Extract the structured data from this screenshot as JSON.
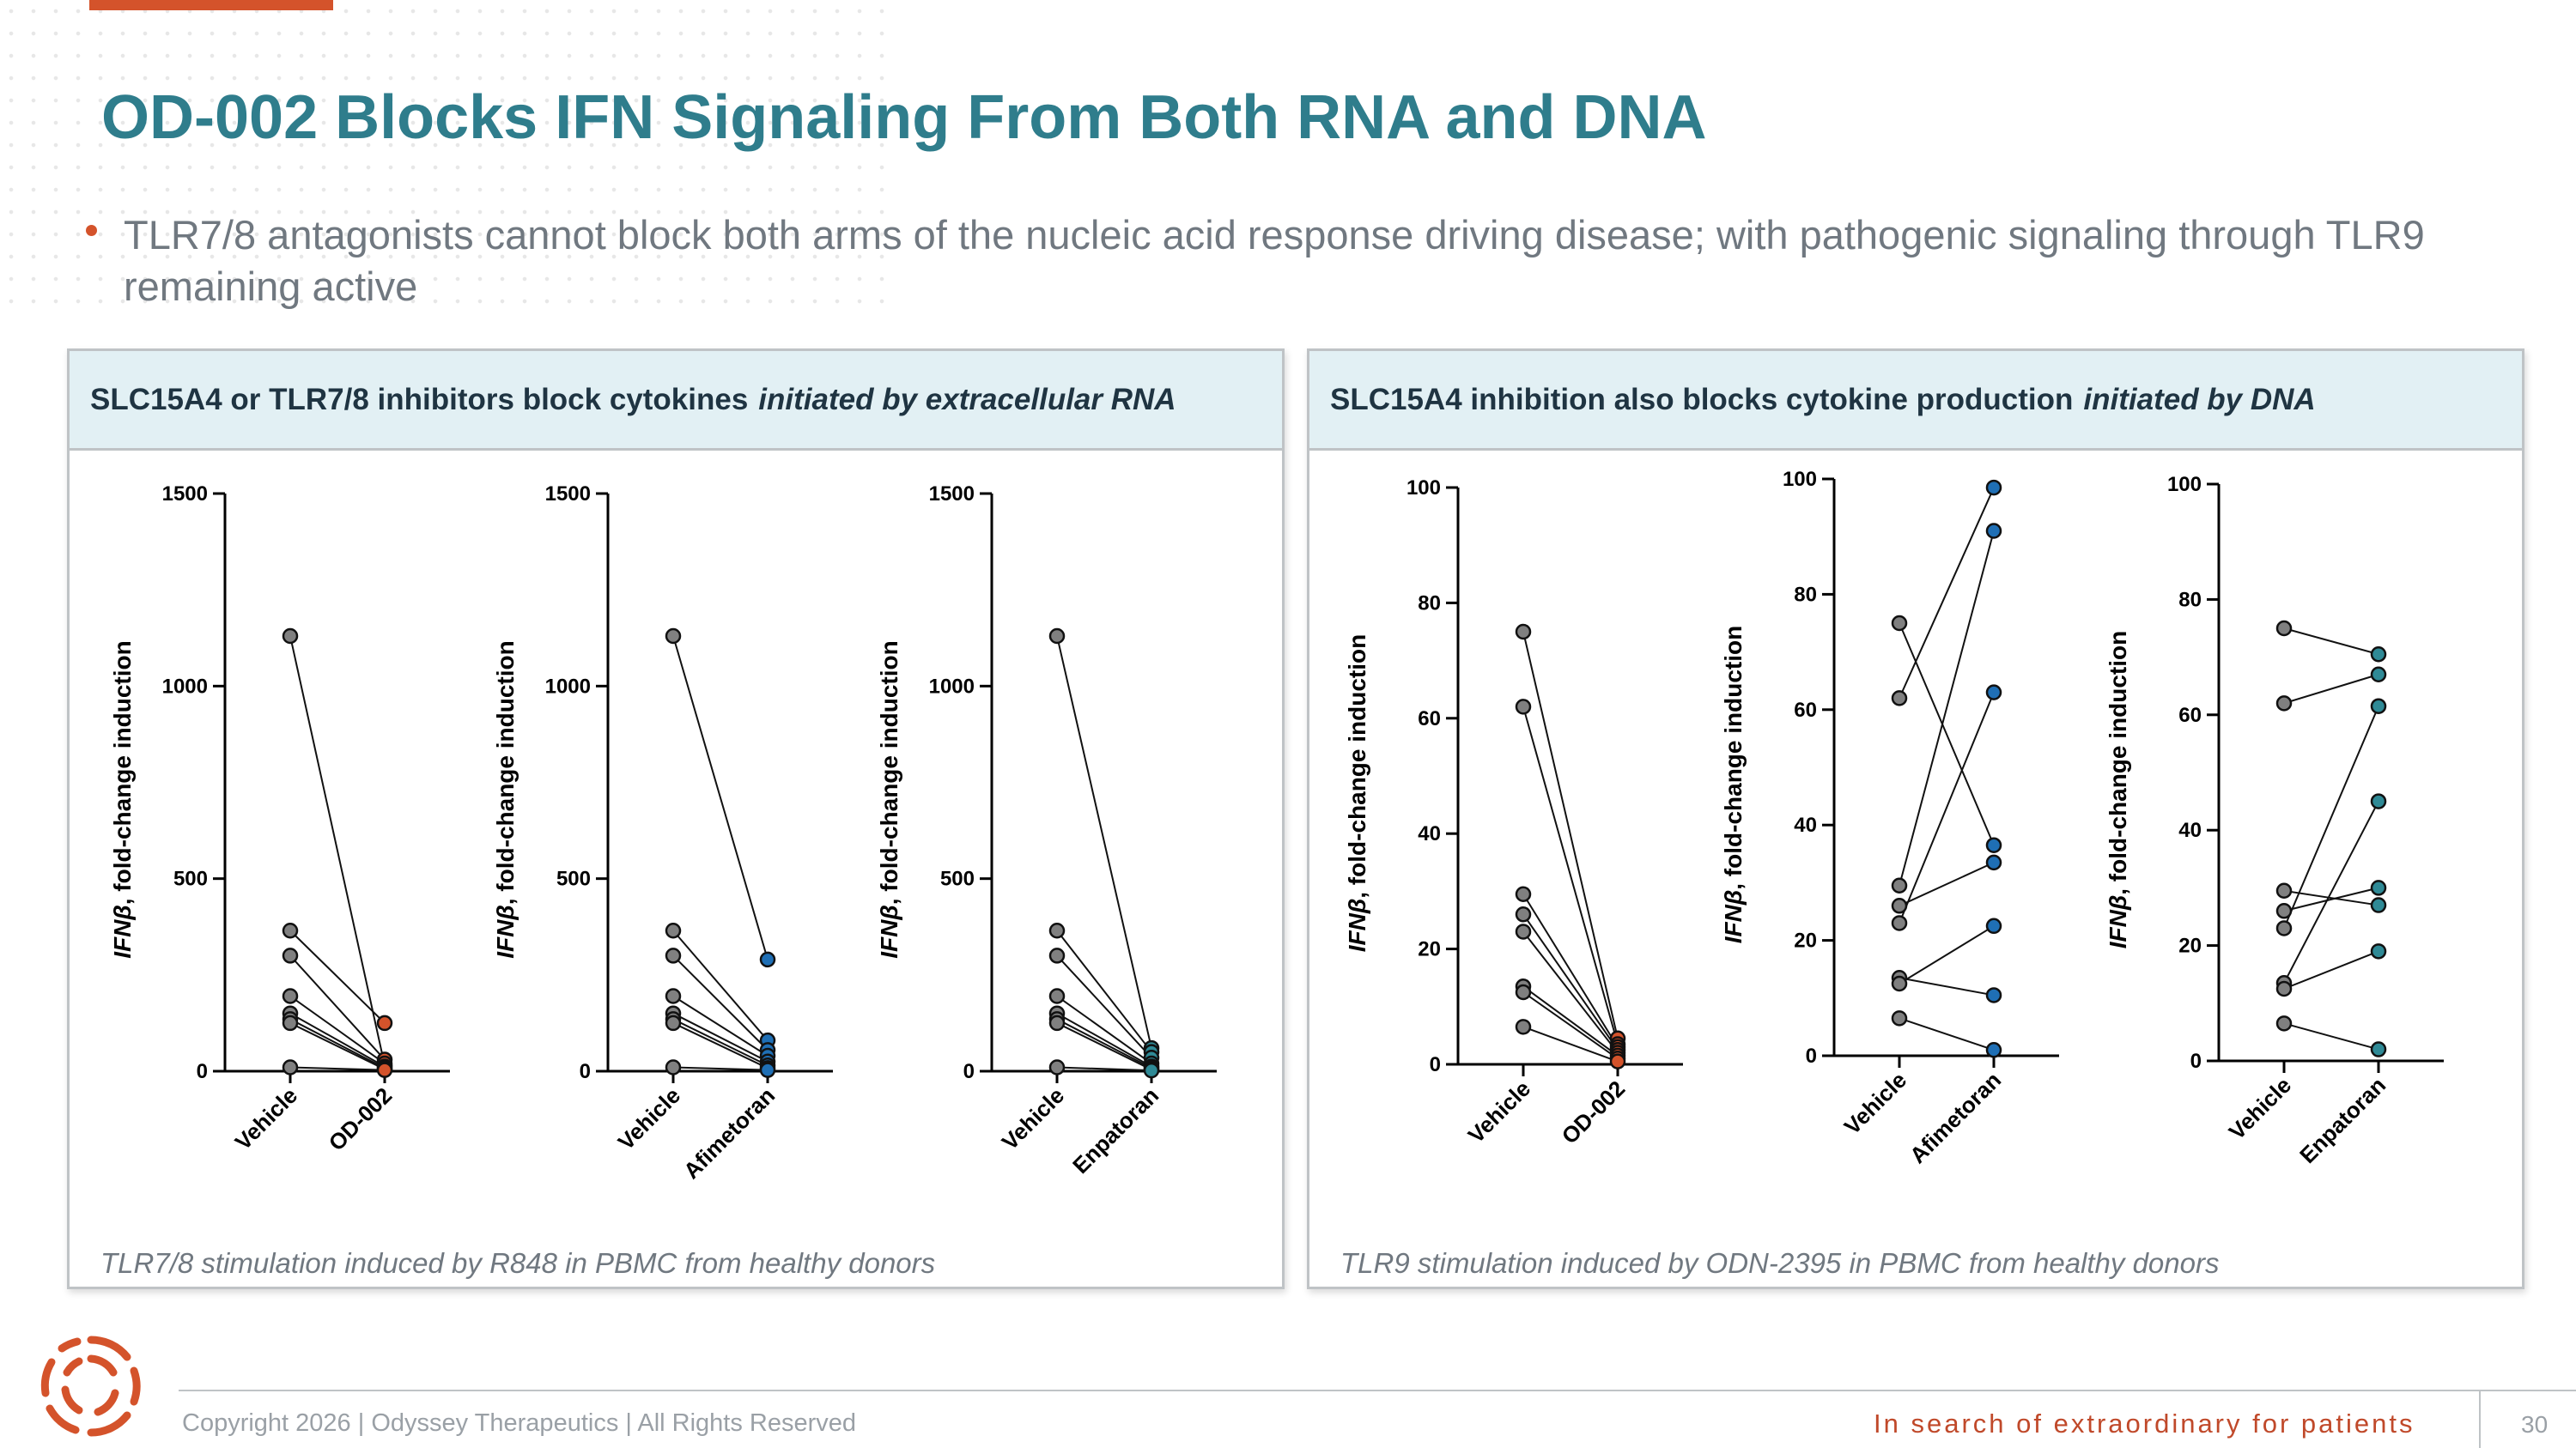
{
  "slide": {
    "title": "OD-002 Blocks IFN Signaling From Both RNA and DNA",
    "bullet": "TLR7/8 antagonists cannot block both arms of the nucleic acid response driving disease; with pathogenic signaling through TLR9 remaining active"
  },
  "panels": {
    "left": {
      "heading": "SLC15A4 or TLR7/8 inhibitors block cytokines",
      "heading_italic": "initiated by extracellular RNA",
      "footnote": "TLR7/8 stimulation induced by R848 in PBMC from healthy donors"
    },
    "right": {
      "heading": "SLC15A4 inhibition also blocks cytokine production",
      "heading_italic": "initiated by DNA",
      "footnote": "TLR9 stimulation induced by ODN-2395 in PBMC from healthy donors"
    }
  },
  "footer": {
    "copyright": "Copyright 2026  |  Odyssey Therapeutics  |  All Rights Reserved",
    "tagline": "In search of extraordinary for patients",
    "page": "30"
  },
  "colors": {
    "accent": "#d4532b",
    "title": "#2f7d8c",
    "vehicle_point": "#808080",
    "od002_point": "#d4532b",
    "afimetoran_point": "#1f6fb5",
    "enpatoran_point": "#2f8a96"
  },
  "chart_data": [
    {
      "type": "scatter",
      "panel": "left",
      "ylabel_italic": "IFNβ",
      "ylabel": ", fold-change induction",
      "categories": [
        "Vehicle",
        "OD-002"
      ],
      "ylim": [
        0,
        1500
      ],
      "yticks": [
        0,
        500,
        1000,
        1500
      ],
      "point_color": "#d4532b",
      "series": [
        {
          "values": [
            1130,
            15
          ]
        },
        {
          "values": [
            365,
            125
          ]
        },
        {
          "values": [
            300,
            30
          ]
        },
        {
          "values": [
            195,
            20
          ]
        },
        {
          "values": [
            150,
            12
          ]
        },
        {
          "values": [
            135,
            8
          ]
        },
        {
          "values": [
            125,
            5
          ]
        },
        {
          "values": [
            10,
            3
          ]
        }
      ]
    },
    {
      "type": "scatter",
      "panel": "left",
      "ylabel_italic": "IFNβ",
      "ylabel": ", fold-change induction",
      "categories": [
        "Vehicle",
        "Afimetoran"
      ],
      "ylim": [
        0,
        1500
      ],
      "yticks": [
        0,
        500,
        1000,
        1500
      ],
      "point_color": "#1f6fb5",
      "series": [
        {
          "values": [
            1130,
            290
          ]
        },
        {
          "values": [
            365,
            80
          ]
        },
        {
          "values": [
            300,
            55
          ]
        },
        {
          "values": [
            195,
            40
          ]
        },
        {
          "values": [
            150,
            25
          ]
        },
        {
          "values": [
            135,
            15
          ]
        },
        {
          "values": [
            125,
            8
          ]
        },
        {
          "values": [
            10,
            3
          ]
        }
      ]
    },
    {
      "type": "scatter",
      "panel": "left",
      "ylabel_italic": "IFNβ",
      "ylabel": ", fold-change induction",
      "categories": [
        "Vehicle",
        "Enpatoran"
      ],
      "ylim": [
        0,
        1500
      ],
      "yticks": [
        0,
        500,
        1000,
        1500
      ],
      "point_color": "#2f8a96",
      "series": [
        {
          "values": [
            1130,
            60
          ]
        },
        {
          "values": [
            365,
            50
          ]
        },
        {
          "values": [
            300,
            35
          ]
        },
        {
          "values": [
            195,
            20
          ]
        },
        {
          "values": [
            150,
            12
          ]
        },
        {
          "values": [
            135,
            8
          ]
        },
        {
          "values": [
            125,
            4
          ]
        },
        {
          "values": [
            10,
            2
          ]
        }
      ]
    },
    {
      "type": "scatter",
      "panel": "right",
      "ylabel_italic": "IFNβ",
      "ylabel": ", fold-change induction",
      "categories": [
        "Vehicle",
        "OD-002"
      ],
      "ylim": [
        0,
        100
      ],
      "yticks": [
        0,
        20,
        40,
        60,
        80,
        100
      ],
      "point_color": "#d4532b",
      "series": [
        {
          "values": [
            75,
            4.5
          ]
        },
        {
          "values": [
            62,
            3.5
          ]
        },
        {
          "values": [
            29.5,
            3
          ]
        },
        {
          "values": [
            26,
            2.5
          ]
        },
        {
          "values": [
            23,
            2
          ]
        },
        {
          "values": [
            13.5,
            1.5
          ]
        },
        {
          "values": [
            12.5,
            1
          ]
        },
        {
          "values": [
            6.5,
            0.5
          ]
        }
      ]
    },
    {
      "type": "scatter",
      "panel": "right",
      "ylabel_italic": "IFNβ",
      "ylabel": ", fold-change induction",
      "categories": [
        "Vehicle",
        "Afimetoran"
      ],
      "ylim": [
        0,
        100
      ],
      "yticks": [
        0,
        20,
        40,
        60,
        80,
        100
      ],
      "point_color": "#1f6fb5",
      "series": [
        {
          "values": [
            75,
            36.5
          ]
        },
        {
          "values": [
            62,
            98.5
          ]
        },
        {
          "values": [
            29.5,
            91
          ]
        },
        {
          "values": [
            26,
            33.5
          ]
        },
        {
          "values": [
            23,
            63
          ]
        },
        {
          "values": [
            13.5,
            10.5
          ]
        },
        {
          "values": [
            12.5,
            22.5
          ]
        },
        {
          "values": [
            6.5,
            1
          ]
        }
      ]
    },
    {
      "type": "scatter",
      "panel": "right",
      "ylabel_italic": "IFNβ",
      "ylabel": ", fold-change induction",
      "categories": [
        "Vehicle",
        "Enpatoran"
      ],
      "ylim": [
        0,
        100
      ],
      "yticks": [
        0,
        20,
        40,
        60,
        80,
        100
      ],
      "point_color": "#2f8a96",
      "series": [
        {
          "values": [
            75,
            70.5
          ]
        },
        {
          "values": [
            62,
            67
          ]
        },
        {
          "values": [
            29.5,
            27
          ]
        },
        {
          "values": [
            26,
            30
          ]
        },
        {
          "values": [
            23,
            61.5
          ]
        },
        {
          "values": [
            13.5,
            45
          ]
        },
        {
          "values": [
            12.5,
            19
          ]
        },
        {
          "values": [
            6.5,
            2
          ]
        }
      ]
    }
  ]
}
